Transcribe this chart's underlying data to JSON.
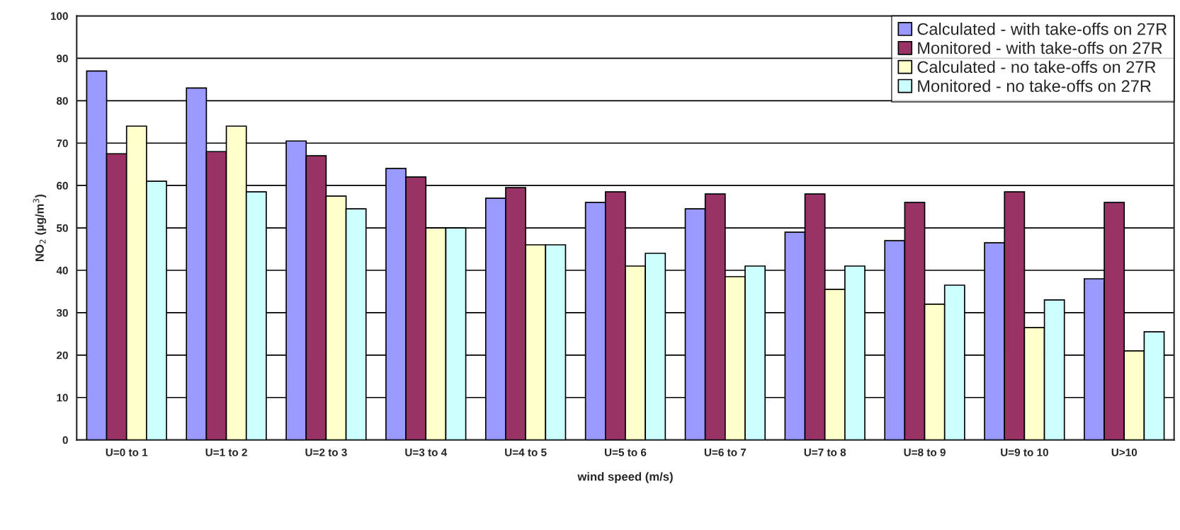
{
  "chart_data": {
    "type": "bar",
    "xlabel": "wind speed (m/s)",
    "ylabel": "NO$_{2}$ (µg/m$^{3}$)",
    "categories": [
      "U=0 to 1",
      "U=1 to 2",
      "U=2 to 3",
      "U=3 to 4",
      "U=4 to 5",
      "U=5 to 6",
      "U=6 to 7",
      "U=7 to 8",
      "U=8 to 9",
      "U=9 to 10",
      "U>10"
    ],
    "series": [
      {
        "name": "Calculated - with take-offs on 27R",
        "color": "#9999ff",
        "values": [
          87,
          83,
          70.5,
          64,
          57,
          56,
          54.5,
          49,
          47,
          46.5,
          38
        ]
      },
      {
        "name": "Monitored - with take-offs on 27R",
        "color": "#993366",
        "values": [
          67.5,
          68,
          67,
          62,
          59.5,
          58.5,
          58,
          58,
          56,
          58.5,
          56
        ]
      },
      {
        "name": "Calculated - no take-offs on 27R",
        "color": "#ffffcc",
        "values": [
          74,
          74,
          57.5,
          50,
          46,
          41,
          38.5,
          35.5,
          32,
          26.5,
          21
        ]
      },
      {
        "name": "Monitored - no take-offs on 27R",
        "color": "#ccffff",
        "values": [
          61,
          58.5,
          54.5,
          50,
          46,
          44,
          41,
          41,
          36.5,
          33,
          25.5
        ]
      }
    ],
    "ylim": [
      0,
      100
    ],
    "yticks": [
      0,
      10,
      20,
      30,
      40,
      50,
      60,
      70,
      80,
      90,
      100
    ],
    "grid": "y",
    "legend": "top right"
  }
}
